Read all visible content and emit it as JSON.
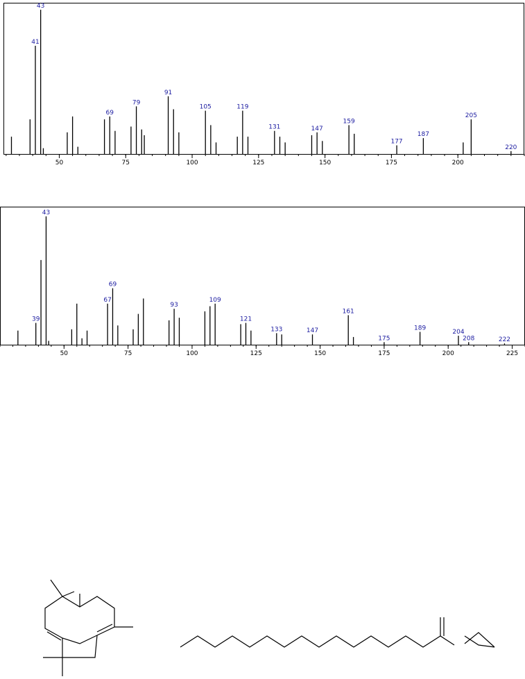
{
  "chart_data": [
    {
      "type": "bar",
      "color": "#000000",
      "label_color": "#1a1aa0",
      "x": [
        32,
        39,
        41,
        43,
        44,
        53,
        55,
        57,
        67,
        69,
        71,
        77,
        79,
        81,
        82,
        91,
        93,
        95,
        105,
        107,
        109,
        117,
        119,
        121,
        131,
        133,
        135,
        145,
        147,
        149,
        159,
        161,
        177,
        187,
        202,
        205,
        220
      ],
      "values": [
        12,
        24,
        75,
        100,
        4,
        15,
        26,
        5,
        24,
        26,
        16,
        19,
        33,
        17,
        13,
        40,
        31,
        15,
        30,
        20,
        8,
        12,
        30,
        12,
        16,
        12,
        8,
        13,
        15,
        9,
        20,
        14,
        6,
        11,
        8,
        24,
        2
      ],
      "labeled_peaks": [
        2,
        3,
        9,
        12,
        15,
        18,
        22,
        24,
        28,
        30,
        32,
        33,
        35,
        36
      ],
      "xlim": [
        29,
        225
      ],
      "xticks": [
        50,
        75,
        100,
        125,
        150,
        175,
        200
      ],
      "ylim": [
        0,
        100
      ]
    },
    {
      "type": "bar",
      "color": "#000000",
      "label_color": "#1a1aa0",
      "x": [
        32,
        39,
        41,
        43,
        44,
        53,
        55,
        57,
        59,
        67,
        69,
        71,
        77,
        79,
        81,
        91,
        93,
        95,
        105,
        107,
        109,
        119,
        121,
        123,
        133,
        135,
        147,
        161,
        163,
        175,
        189,
        204,
        208,
        222
      ],
      "values": [
        11,
        17,
        66,
        100,
        3,
        12,
        32,
        5,
        11,
        32,
        44,
        15,
        12,
        24,
        36,
        19,
        28,
        21,
        26,
        30,
        32,
        16,
        17,
        11,
        9,
        8,
        8,
        23,
        6,
        2,
        10,
        7,
        2,
        1
      ],
      "labeled_peaks": [
        1,
        3,
        9,
        10,
        16,
        20,
        22,
        24,
        26,
        27,
        29,
        30,
        31,
        32,
        33
      ],
      "xlim": [
        25,
        230
      ],
      "xticks": [
        50,
        75,
        100,
        125,
        150,
        175,
        200,
        225
      ],
      "ylim": [
        0,
        100
      ]
    }
  ]
}
